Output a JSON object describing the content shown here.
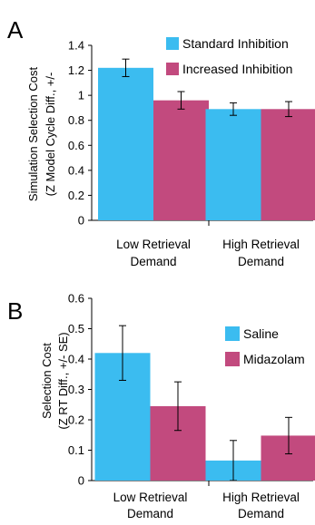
{
  "chart_data": [
    {
      "panel": "A",
      "type": "bar",
      "ylabel_lines": [
        "Simulation Selection Cost",
        "(Z Model Cycle Diff., +/-"
      ],
      "categories": [
        [
          "Low Retrieval",
          "Demand"
        ],
        [
          "High Retrieval",
          "Demand"
        ]
      ],
      "ylim": [
        0,
        1.4
      ],
      "yticks": [
        "0",
        "0.2",
        "0.4",
        "0.6",
        "0.8",
        "1",
        "1.2",
        "1.4"
      ],
      "ytick_values": [
        0,
        0.2,
        0.4,
        0.6,
        0.8,
        1.0,
        1.2,
        1.4
      ],
      "legend_position": "top-right",
      "grid": false,
      "series": [
        {
          "name": "Standard Inhibition",
          "color": "#3bbcf0",
          "values": [
            1.22,
            0.89
          ],
          "errors": [
            0.07,
            0.05
          ]
        },
        {
          "name": "Increased Inhibition",
          "color": "#c24a7e",
          "values": [
            0.96,
            0.89
          ],
          "errors": [
            0.07,
            0.06
          ]
        }
      ]
    },
    {
      "panel": "B",
      "type": "bar",
      "ylabel_lines": [
        "Selection Cost",
        "(Z RT Diff., +/- SE)"
      ],
      "categories": [
        [
          "Low Retrieval",
          "Demand"
        ],
        [
          "High Retrieval",
          "Demand"
        ]
      ],
      "ylim": [
        0,
        0.6
      ],
      "yticks": [
        "0",
        "0.1",
        "0.2",
        "0.3",
        "0.4",
        "0.5",
        "0.6"
      ],
      "ytick_values": [
        0,
        0.1,
        0.2,
        0.3,
        0.4,
        0.5,
        0.6
      ],
      "legend_position": "right",
      "grid": false,
      "series": [
        {
          "name": "Saline",
          "color": "#3bbcf0",
          "values": [
            0.42,
            0.066
          ],
          "errors": [
            0.09,
            0.066
          ]
        },
        {
          "name": "Midazolam",
          "color": "#c24a7e",
          "values": [
            0.245,
            0.148
          ],
          "errors": [
            0.08,
            0.06
          ]
        }
      ]
    }
  ]
}
